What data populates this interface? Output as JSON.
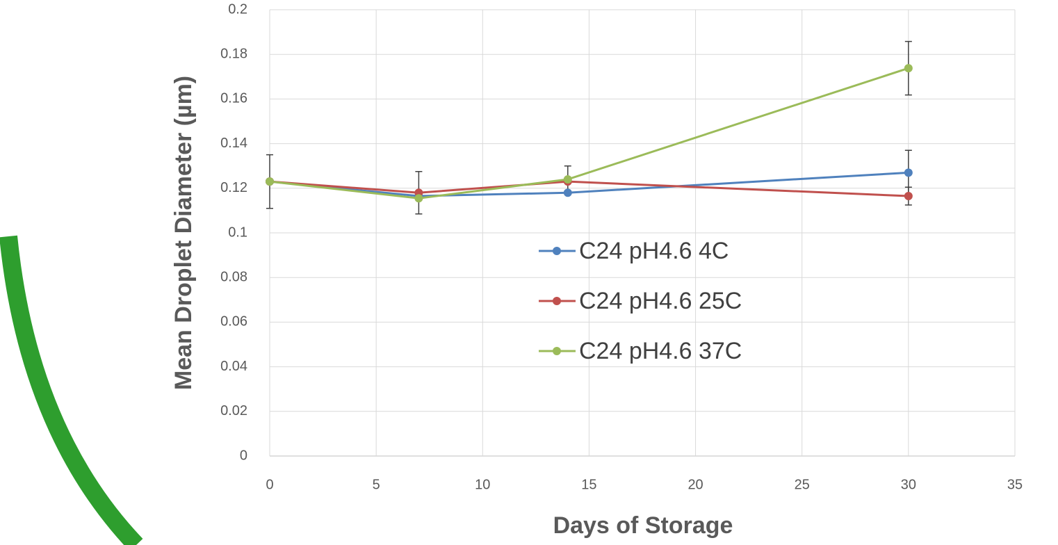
{
  "chart_data": {
    "type": "line",
    "x_label": "Days of Storage",
    "y_label": "Mean Droplet Diameter (µm)",
    "x": [
      0,
      7,
      14,
      30
    ],
    "series": [
      {
        "name": "C24 pH4.6 4C",
        "color": "#4f81bd",
        "values": [
          0.123,
          0.1165,
          0.118,
          0.127
        ],
        "errors": [
          null,
          null,
          null,
          0.01
        ]
      },
      {
        "name": "C24 pH4.6 25C",
        "color": "#c0504d",
        "values": [
          0.123,
          0.118,
          0.123,
          0.1165
        ],
        "errors": [
          null,
          0.0095,
          null,
          0.004
        ]
      },
      {
        "name": "C24 pH4.6 37C",
        "color": "#9bbb59",
        "values": [
          0.123,
          0.1155,
          0.124,
          0.1738
        ],
        "errors": [
          0.012,
          null,
          0.006,
          0.012
        ]
      }
    ],
    "xlim": [
      0,
      35
    ],
    "xticks": [
      0,
      5,
      10,
      15,
      20,
      25,
      30,
      35
    ],
    "ylim": [
      0,
      0.2
    ],
    "yticks": [
      0,
      0.02,
      0.04,
      0.06,
      0.08,
      0.1,
      0.12,
      0.14,
      0.16,
      0.18,
      0.2
    ],
    "grid": true,
    "legend": "center"
  }
}
